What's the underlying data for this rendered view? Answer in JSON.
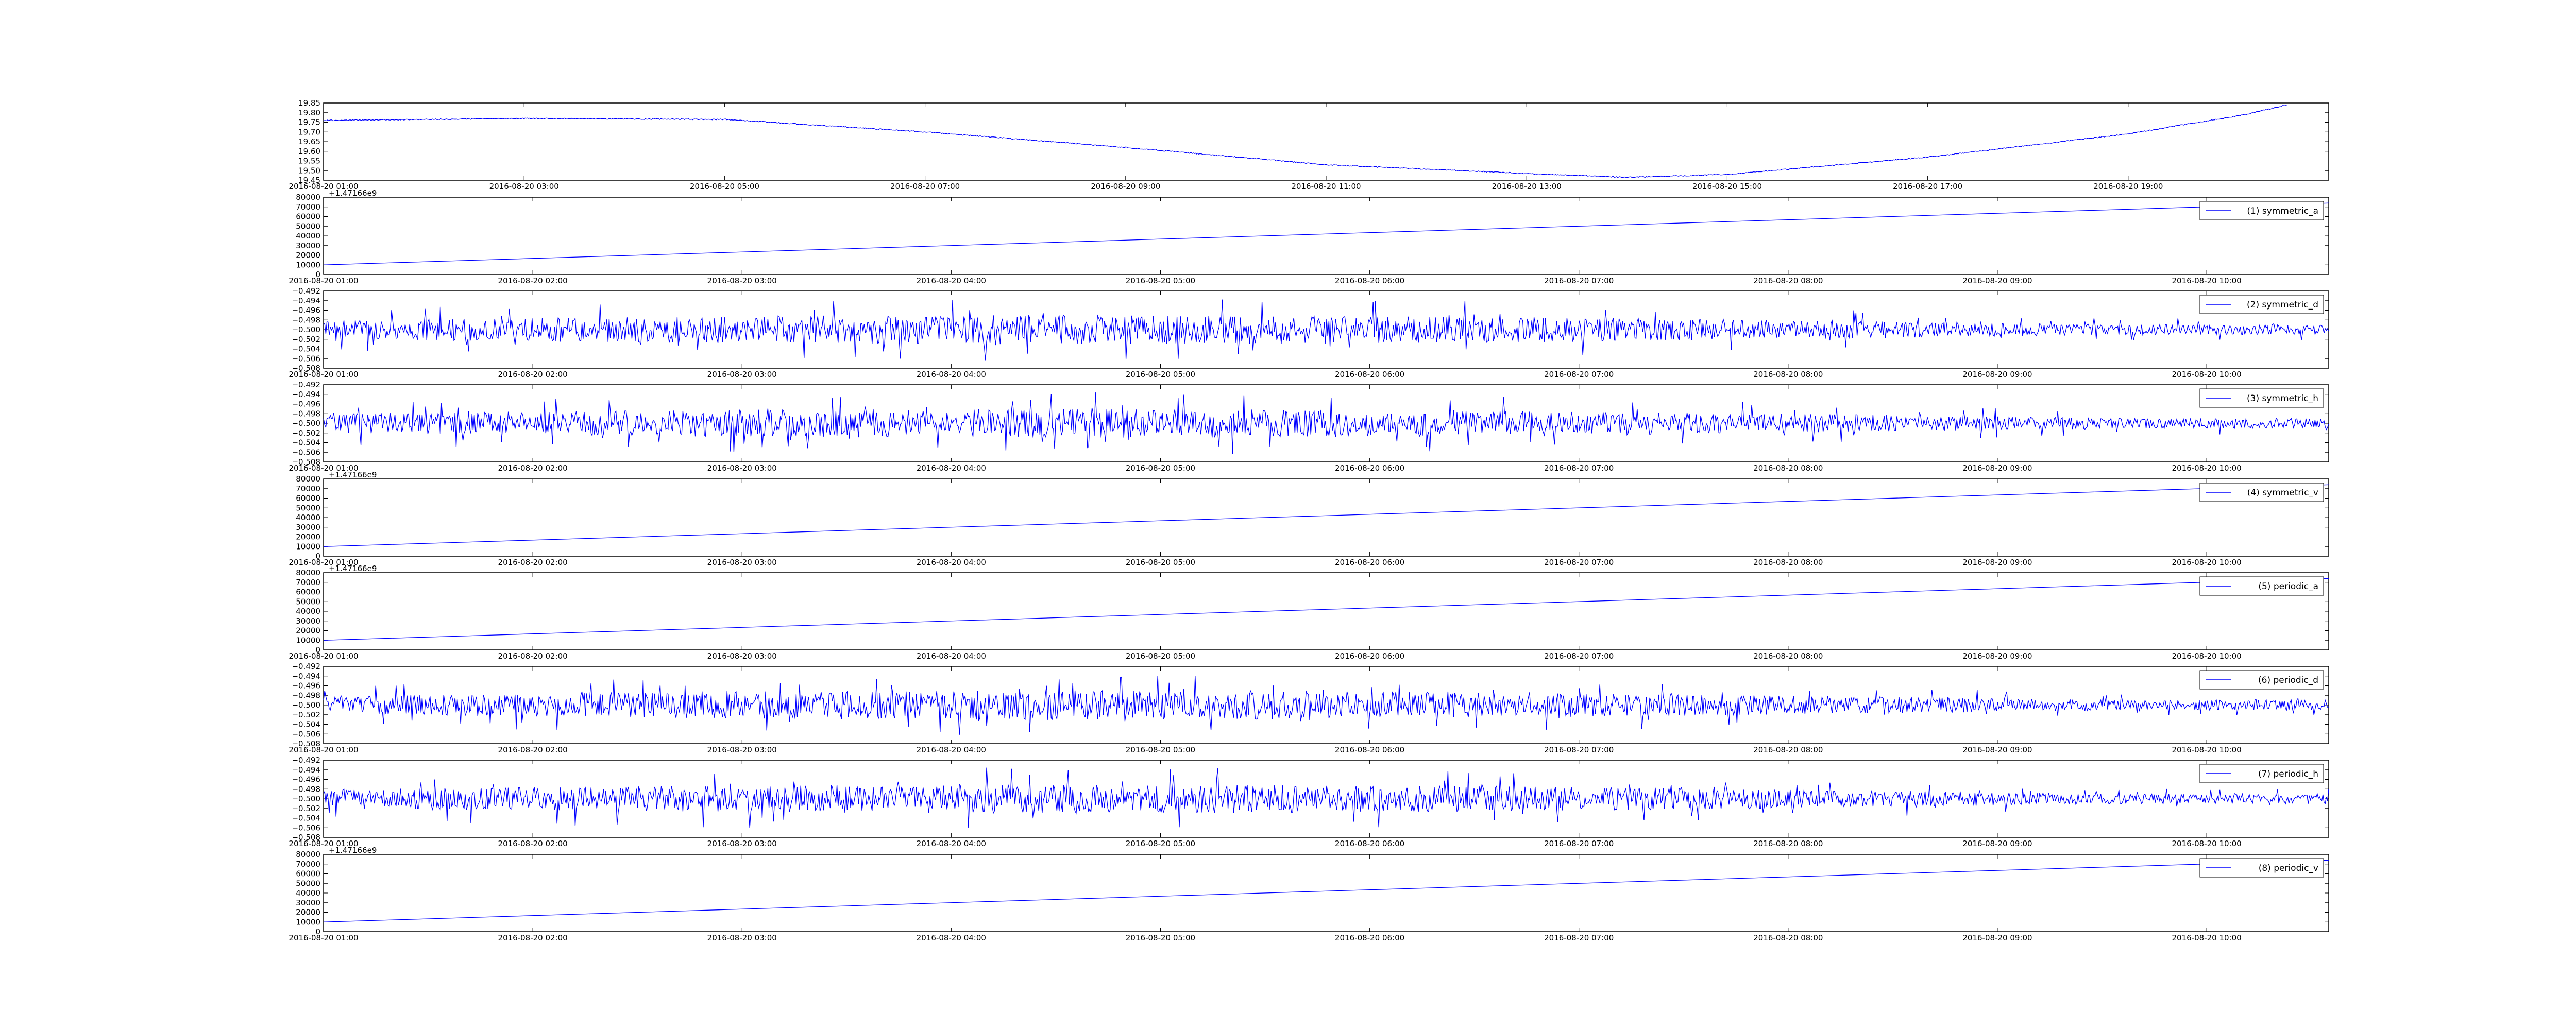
{
  "chart_data": [
    {
      "type": "line",
      "title": "",
      "xlabel": "",
      "ylabel": "",
      "offset_text": "",
      "series_color": "#0000ff",
      "legend": null,
      "x_range": [
        "2016-08-20 01:00",
        "2016-08-20 21:00"
      ],
      "xticks": [
        "2016-08-20 01:00",
        "2016-08-20 03:00",
        "2016-08-20 05:00",
        "2016-08-20 07:00",
        "2016-08-20 09:00",
        "2016-08-20 11:00",
        "2016-08-20 13:00",
        "2016-08-20 15:00",
        "2016-08-20 17:00",
        "2016-08-20 19:00"
      ],
      "ylim": [
        19.45,
        19.85
      ],
      "yticks": [
        "19.45",
        "19.50",
        "19.55",
        "19.60",
        "19.65",
        "19.70",
        "19.75",
        "19.80",
        "19.85"
      ],
      "noise": 0.0025,
      "points": [
        {
          "x": "2016-08-20 01:00",
          "y": 19.76
        },
        {
          "x": "2016-08-20 03:00",
          "y": 19.77
        },
        {
          "x": "2016-08-20 05:00",
          "y": 19.765
        },
        {
          "x": "2016-08-20 07:00",
          "y": 19.7
        },
        {
          "x": "2016-08-20 09:00",
          "y": 19.62
        },
        {
          "x": "2016-08-20 11:00",
          "y": 19.53
        },
        {
          "x": "2016-08-20 13:00",
          "y": 19.485
        },
        {
          "x": "2016-08-20 14:00",
          "y": 19.465
        },
        {
          "x": "2016-08-20 15:00",
          "y": 19.48
        },
        {
          "x": "2016-08-20 17:00",
          "y": 19.57
        },
        {
          "x": "2016-08-20 19:00",
          "y": 19.69
        },
        {
          "x": "2016-08-20 20:10",
          "y": 19.79
        },
        {
          "x": "2016-08-20 20:35",
          "y": 19.84
        }
      ]
    },
    {
      "type": "line",
      "title": "",
      "xlabel": "",
      "ylabel": "",
      "offset_text": "+1.47166e9",
      "series_color": "#0000ff",
      "legend": {
        "label": "(1) symmetric_a",
        "position": "top-right"
      },
      "x_range": [
        "2016-08-20 01:00",
        "2016-08-20 10:35"
      ],
      "xticks": [
        "2016-08-20 01:00",
        "2016-08-20 02:00",
        "2016-08-20 03:00",
        "2016-08-20 04:00",
        "2016-08-20 05:00",
        "2016-08-20 06:00",
        "2016-08-20 07:00",
        "2016-08-20 08:00",
        "2016-08-20 09:00",
        "2016-08-20 10:00"
      ],
      "ylim": [
        0,
        80000
      ],
      "yticks": [
        "0",
        "10000",
        "20000",
        "30000",
        "40000",
        "50000",
        "60000",
        "70000",
        "80000"
      ],
      "points": [
        {
          "x": "2016-08-20 01:00",
          "y": 10000
        },
        {
          "x": "2016-08-20 10:35",
          "y": 74000
        }
      ]
    },
    {
      "type": "line",
      "title": "",
      "xlabel": "",
      "ylabel": "",
      "offset_text": "",
      "series_color": "#0000ff",
      "legend": {
        "label": "(2) symmetric_d",
        "position": "top-right"
      },
      "x_range": [
        "2016-08-20 01:00",
        "2016-08-20 10:35"
      ],
      "xticks": [
        "2016-08-20 01:00",
        "2016-08-20 02:00",
        "2016-08-20 03:00",
        "2016-08-20 04:00",
        "2016-08-20 05:00",
        "2016-08-20 06:00",
        "2016-08-20 07:00",
        "2016-08-20 08:00",
        "2016-08-20 09:00",
        "2016-08-20 10:00"
      ],
      "ylim": [
        -0.508,
        -0.492
      ],
      "yticks": [
        "−0.508",
        "−0.506",
        "−0.504",
        "−0.502",
        "−0.500",
        "−0.498",
        "−0.496",
        "−0.494",
        "−0.492"
      ],
      "baseline": -0.5,
      "spike_amplitude": 0.0055,
      "seed": 11
    },
    {
      "type": "line",
      "title": "",
      "xlabel": "",
      "ylabel": "",
      "offset_text": "",
      "series_color": "#0000ff",
      "legend": {
        "label": "(3) symmetric_h",
        "position": "top-right"
      },
      "x_range": [
        "2016-08-20 01:00",
        "2016-08-20 10:35"
      ],
      "xticks": [
        "2016-08-20 01:00",
        "2016-08-20 02:00",
        "2016-08-20 03:00",
        "2016-08-20 04:00",
        "2016-08-20 05:00",
        "2016-08-20 06:00",
        "2016-08-20 07:00",
        "2016-08-20 08:00",
        "2016-08-20 09:00",
        "2016-08-20 10:00"
      ],
      "ylim": [
        -0.508,
        -0.492
      ],
      "yticks": [
        "−0.508",
        "−0.506",
        "−0.504",
        "−0.502",
        "−0.500",
        "−0.498",
        "−0.496",
        "−0.494",
        "−0.492"
      ],
      "baseline": -0.5,
      "spike_amplitude": 0.0055,
      "seed": 23
    },
    {
      "type": "line",
      "title": "",
      "xlabel": "",
      "ylabel": "",
      "offset_text": "+1.47166e9",
      "series_color": "#0000ff",
      "legend": {
        "label": "(4) symmetric_v",
        "position": "top-right"
      },
      "x_range": [
        "2016-08-20 01:00",
        "2016-08-20 10:35"
      ],
      "xticks": [
        "2016-08-20 01:00",
        "2016-08-20 02:00",
        "2016-08-20 03:00",
        "2016-08-20 04:00",
        "2016-08-20 05:00",
        "2016-08-20 06:00",
        "2016-08-20 07:00",
        "2016-08-20 08:00",
        "2016-08-20 09:00",
        "2016-08-20 10:00"
      ],
      "ylim": [
        0,
        80000
      ],
      "yticks": [
        "0",
        "10000",
        "20000",
        "30000",
        "40000",
        "50000",
        "60000",
        "70000",
        "80000"
      ],
      "points": [
        {
          "x": "2016-08-20 01:00",
          "y": 10000
        },
        {
          "x": "2016-08-20 10:35",
          "y": 74000
        }
      ]
    },
    {
      "type": "line",
      "title": "",
      "xlabel": "",
      "ylabel": "",
      "offset_text": "+1.47166e9",
      "series_color": "#0000ff",
      "legend": {
        "label": "(5) periodic_a",
        "position": "top-right"
      },
      "x_range": [
        "2016-08-20 01:00",
        "2016-08-20 10:35"
      ],
      "xticks": [
        "2016-08-20 01:00",
        "2016-08-20 02:00",
        "2016-08-20 03:00",
        "2016-08-20 04:00",
        "2016-08-20 05:00",
        "2016-08-20 06:00",
        "2016-08-20 07:00",
        "2016-08-20 08:00",
        "2016-08-20 09:00",
        "2016-08-20 10:00"
      ],
      "ylim": [
        0,
        80000
      ],
      "yticks": [
        "0",
        "10000",
        "20000",
        "30000",
        "40000",
        "50000",
        "60000",
        "70000",
        "80000"
      ],
      "points": [
        {
          "x": "2016-08-20 01:00",
          "y": 10000
        },
        {
          "x": "2016-08-20 10:35",
          "y": 74000
        }
      ]
    },
    {
      "type": "line",
      "title": "",
      "xlabel": "",
      "ylabel": "",
      "offset_text": "",
      "series_color": "#0000ff",
      "legend": {
        "label": "(6) periodic_d",
        "position": "top-right"
      },
      "x_range": [
        "2016-08-20 01:00",
        "2016-08-20 10:35"
      ],
      "xticks": [
        "2016-08-20 01:00",
        "2016-08-20 02:00",
        "2016-08-20 03:00",
        "2016-08-20 04:00",
        "2016-08-20 05:00",
        "2016-08-20 06:00",
        "2016-08-20 07:00",
        "2016-08-20 08:00",
        "2016-08-20 09:00",
        "2016-08-20 10:00"
      ],
      "ylim": [
        -0.508,
        -0.492
      ],
      "yticks": [
        "−0.508",
        "−0.506",
        "−0.504",
        "−0.502",
        "−0.500",
        "−0.498",
        "−0.496",
        "−0.494",
        "−0.492"
      ],
      "baseline": -0.5,
      "spike_amplitude": 0.0055,
      "seed": 37
    },
    {
      "type": "line",
      "title": "",
      "xlabel": "",
      "ylabel": "",
      "offset_text": "",
      "series_color": "#0000ff",
      "legend": {
        "label": "(7) periodic_h",
        "position": "top-right"
      },
      "x_range": [
        "2016-08-20 01:00",
        "2016-08-20 10:35"
      ],
      "xticks": [
        "2016-08-20 01:00",
        "2016-08-20 02:00",
        "2016-08-20 03:00",
        "2016-08-20 04:00",
        "2016-08-20 05:00",
        "2016-08-20 06:00",
        "2016-08-20 07:00",
        "2016-08-20 08:00",
        "2016-08-20 09:00",
        "2016-08-20 10:00"
      ],
      "ylim": [
        -0.508,
        -0.492
      ],
      "yticks": [
        "−0.508",
        "−0.506",
        "−0.504",
        "−0.502",
        "−0.500",
        "−0.498",
        "−0.496",
        "−0.494",
        "−0.492"
      ],
      "baseline": -0.5,
      "spike_amplitude": 0.0055,
      "seed": 53
    },
    {
      "type": "line",
      "title": "",
      "xlabel": "",
      "ylabel": "",
      "offset_text": "+1.47166e9",
      "series_color": "#0000ff",
      "legend": {
        "label": "(8) periodic_v",
        "position": "top-right"
      },
      "x_range": [
        "2016-08-20 01:00",
        "2016-08-20 10:35"
      ],
      "xticks": [
        "2016-08-20 01:00",
        "2016-08-20 02:00",
        "2016-08-20 03:00",
        "2016-08-20 04:00",
        "2016-08-20 05:00",
        "2016-08-20 06:00",
        "2016-08-20 07:00",
        "2016-08-20 08:00",
        "2016-08-20 09:00",
        "2016-08-20 10:00"
      ],
      "ylim": [
        0,
        80000
      ],
      "yticks": [
        "0",
        "10000",
        "20000",
        "30000",
        "40000",
        "50000",
        "60000",
        "70000",
        "80000"
      ],
      "points": [
        {
          "x": "2016-08-20 01:00",
          "y": 10000
        },
        {
          "x": "2016-08-20 10:35",
          "y": 74000
        }
      ]
    }
  ]
}
